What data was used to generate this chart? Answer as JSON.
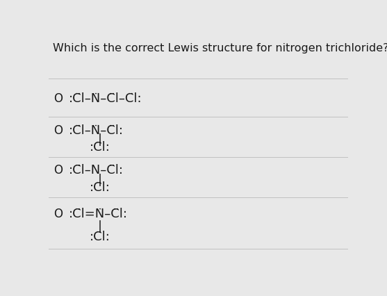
{
  "title": "Which is the correct Lewis structure for nitrogen trichloride?",
  "background_color": "#e8e8e8",
  "line_color": "#c0c0c0",
  "text_color": "#1a1a1a",
  "title_fontsize": 11.5,
  "option_fontsize": 13,
  "figsize": [
    5.57,
    4.27
  ],
  "dpi": 100,
  "options": [
    {
      "main": ":C̈l–N̈–C̈l–C̈l:",
      "sub": null
    },
    {
      "main": ":C̈l–N̈–C̈l:",
      "sub": ":C̈l:"
    },
    {
      "main": ":C̈l–N–C̈l:",
      "sub": ":C̈l:"
    },
    {
      "main": ":C̈l=N̈–C̈l:",
      "sub": ":C̈l:"
    }
  ]
}
